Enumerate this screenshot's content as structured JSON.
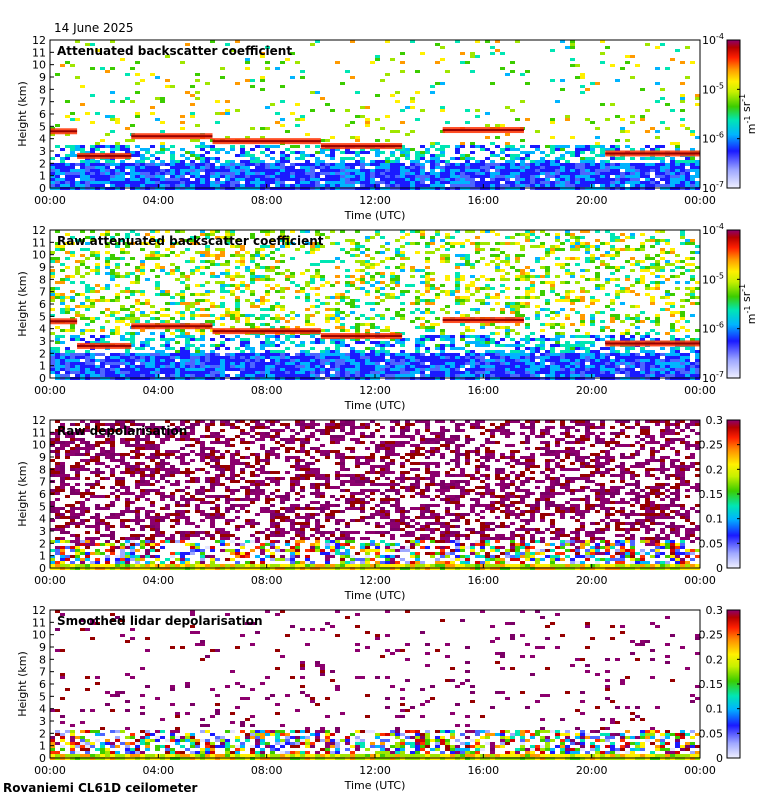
{
  "date_label": "14 June 2025",
  "site_label": "Rovaniemi CL61D ceilometer",
  "colors": {
    "axis": "#000000",
    "colormap": [
      "#e6e6ff",
      "#9fa8ff",
      "#4d66ff",
      "#1a1aff",
      "#00b4ff",
      "#00e6b4",
      "#3ccc00",
      "#a0e600",
      "#fff000",
      "#ff9a00",
      "#ff3000",
      "#d20000",
      "#960000",
      "#8c006e",
      "#7a0066"
    ]
  },
  "chart_data": [
    {
      "type": "heatmap",
      "title": "Attenuated backscatter coefficient",
      "xlabel": "Time (UTC)",
      "ylabel": "Height (km)",
      "xticks": [
        "00:00",
        "04:00",
        "08:00",
        "12:00",
        "16:00",
        "20:00",
        "00:00"
      ],
      "yticks": [
        "0",
        "1",
        "2",
        "3",
        "4",
        "5",
        "6",
        "7",
        "8",
        "9",
        "10",
        "11",
        "12"
      ],
      "ylim": [
        0,
        12
      ],
      "scale": "log",
      "colorbar": {
        "ticks": [
          {
            "base": "10",
            "exp": "-4"
          },
          {
            "base": "10",
            "exp": "-5"
          },
          {
            "base": "10",
            "exp": "-6"
          },
          {
            "base": "10",
            "exp": "-7"
          }
        ],
        "unit": "m-1 sr-1",
        "unit_parts": [
          {
            "base": "m",
            "exp": "-1"
          },
          {
            "base": "sr",
            "exp": "-1"
          }
        ]
      },
      "features": {
        "cloud_layers_km": [
          {
            "start": "00:00",
            "end": "01:00",
            "height": 4.6
          },
          {
            "start": "01:00",
            "end": "03:00",
            "height": 2.6
          },
          {
            "start": "03:00",
            "end": "06:00",
            "height": 4.2
          },
          {
            "start": "06:00",
            "end": "10:00",
            "height": 3.8
          },
          {
            "start": "10:00",
            "end": "13:00",
            "height": 3.4
          },
          {
            "start": "14:30",
            "end": "17:30",
            "height": 4.7
          },
          {
            "start": "20:30",
            "end": "24:00",
            "height": 2.8
          }
        ],
        "boundary_layer_top_km": 2.5
      }
    },
    {
      "type": "heatmap",
      "title": "Raw attenuated backscatter coefficient",
      "xlabel": "Time (UTC)",
      "ylabel": "Height (km)",
      "xticks": [
        "00:00",
        "04:00",
        "08:00",
        "12:00",
        "16:00",
        "20:00",
        "00:00"
      ],
      "yticks": [
        "0",
        "1",
        "2",
        "3",
        "4",
        "5",
        "6",
        "7",
        "8",
        "9",
        "10",
        "11",
        "12"
      ],
      "ylim": [
        0,
        12
      ],
      "scale": "log",
      "colorbar": {
        "ticks": [
          {
            "base": "10",
            "exp": "-4"
          },
          {
            "base": "10",
            "exp": "-5"
          },
          {
            "base": "10",
            "exp": "-6"
          },
          {
            "base": "10",
            "exp": "-7"
          }
        ],
        "unit": "m-1 sr-1",
        "unit_parts": [
          {
            "base": "m",
            "exp": "-1"
          },
          {
            "base": "sr",
            "exp": "-1"
          }
        ]
      }
    },
    {
      "type": "heatmap",
      "title": "Raw depolarisation",
      "xlabel": "Time (UTC)",
      "ylabel": "Height (km)",
      "xticks": [
        "00:00",
        "04:00",
        "08:00",
        "12:00",
        "16:00",
        "20:00",
        "00:00"
      ],
      "yticks": [
        "0",
        "1",
        "2",
        "3",
        "4",
        "5",
        "6",
        "7",
        "8",
        "9",
        "10",
        "11",
        "12"
      ],
      "ylim": [
        0,
        12
      ],
      "scale": "linear",
      "colorbar": {
        "ticks": [
          "0.3",
          "0.25",
          "0.2",
          "0.15",
          "0.1",
          "0.05",
          "0"
        ],
        "range": [
          0,
          0.3
        ]
      }
    },
    {
      "type": "heatmap",
      "title": "Smoothed lidar depolarisation",
      "xlabel": "Time (UTC)",
      "ylabel": "Height (km)",
      "xticks": [
        "00:00",
        "04:00",
        "08:00",
        "12:00",
        "16:00",
        "20:00",
        "00:00"
      ],
      "yticks": [
        "0",
        "1",
        "2",
        "3",
        "4",
        "5",
        "6",
        "7",
        "8",
        "9",
        "10",
        "11",
        "12"
      ],
      "ylim": [
        0,
        12
      ],
      "scale": "linear",
      "colorbar": {
        "ticks": [
          "0.3",
          "0.25",
          "0.2",
          "0.15",
          "0.1",
          "0.05",
          "0"
        ],
        "range": [
          0,
          0.3
        ]
      }
    }
  ]
}
